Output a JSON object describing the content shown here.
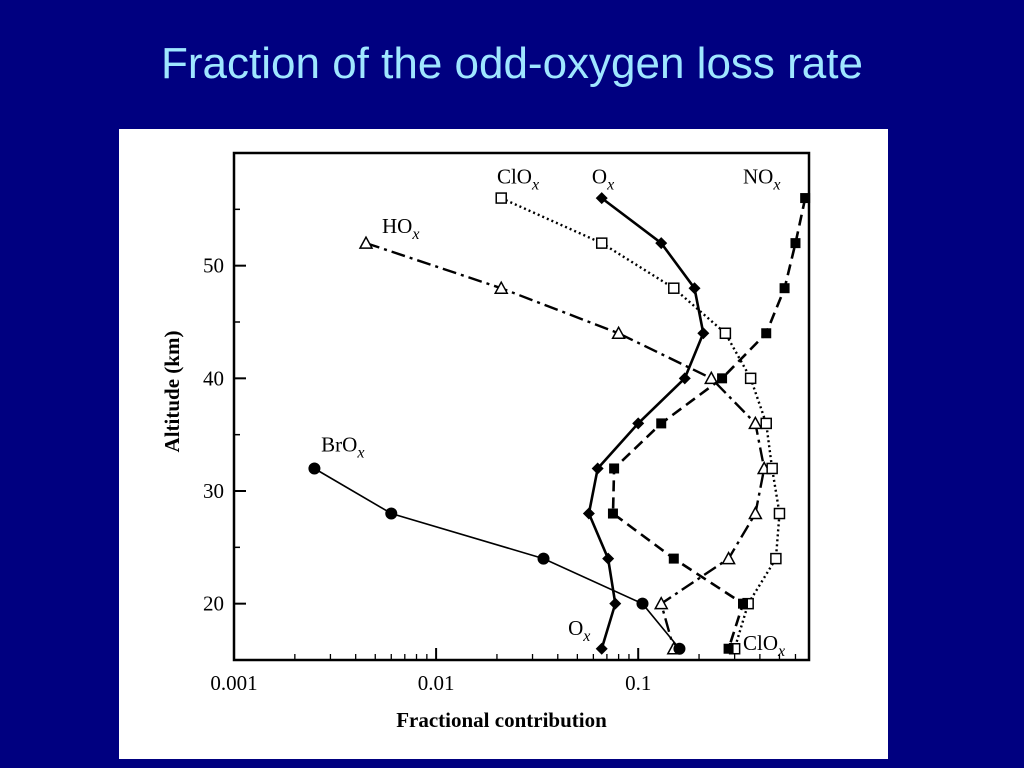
{
  "title": "Fraction of the odd-oxygen loss rate",
  "colors": {
    "background": "#000080",
    "title": "#9fe6ff",
    "panel": "#ffffff",
    "ink": "#000000"
  },
  "chart_data": {
    "type": "line",
    "xscale": "log",
    "xlim": [
      0.001,
      0.7
    ],
    "ylim": [
      15,
      60
    ],
    "xlabel": "Fractional contribution",
    "ylabel": "Altitude (km)",
    "xticks": [
      {
        "value": 0.001,
        "label": "0.001"
      },
      {
        "value": 0.01,
        "label": "0.01"
      },
      {
        "value": 0.1,
        "label": "0.1"
      }
    ],
    "yticks": [
      {
        "value": 20,
        "label": "20"
      },
      {
        "value": 30,
        "label": "30"
      },
      {
        "value": 40,
        "label": "40"
      },
      {
        "value": 50,
        "label": "50"
      }
    ],
    "grid": false,
    "legend": "none",
    "series": [
      {
        "name": "HOx",
        "marker": "triangle-open",
        "line": "dash-dot",
        "points": [
          {
            "x": 0.0045,
            "y": 52
          },
          {
            "x": 0.021,
            "y": 48
          },
          {
            "x": 0.08,
            "y": 44
          },
          {
            "x": 0.23,
            "y": 40
          },
          {
            "x": 0.38,
            "y": 36
          },
          {
            "x": 0.42,
            "y": 32
          },
          {
            "x": 0.38,
            "y": 28
          },
          {
            "x": 0.28,
            "y": 24
          },
          {
            "x": 0.13,
            "y": 20
          },
          {
            "x": 0.15,
            "y": 16
          }
        ]
      },
      {
        "name": "ClOx",
        "marker": "square-open",
        "line": "dotted",
        "points": [
          {
            "x": 0.021,
            "y": 56
          },
          {
            "x": 0.066,
            "y": 52
          },
          {
            "x": 0.15,
            "y": 48
          },
          {
            "x": 0.27,
            "y": 44
          },
          {
            "x": 0.36,
            "y": 40
          },
          {
            "x": 0.43,
            "y": 36
          },
          {
            "x": 0.46,
            "y": 32
          },
          {
            "x": 0.5,
            "y": 28
          },
          {
            "x": 0.48,
            "y": 24
          },
          {
            "x": 0.35,
            "y": 20
          },
          {
            "x": 0.3,
            "y": 16
          }
        ]
      },
      {
        "name": "Ox",
        "marker": "diamond-filled",
        "line": "solid",
        "points": [
          {
            "x": 0.066,
            "y": 56
          },
          {
            "x": 0.13,
            "y": 52
          },
          {
            "x": 0.19,
            "y": 48
          },
          {
            "x": 0.21,
            "y": 44
          },
          {
            "x": 0.17,
            "y": 40
          },
          {
            "x": 0.1,
            "y": 36
          },
          {
            "x": 0.063,
            "y": 32
          },
          {
            "x": 0.057,
            "y": 28
          },
          {
            "x": 0.071,
            "y": 24
          },
          {
            "x": 0.077,
            "y": 20
          },
          {
            "x": 0.066,
            "y": 16
          }
        ]
      },
      {
        "name": "NOx",
        "marker": "square-filled",
        "line": "dashed",
        "points": [
          {
            "x": 0.67,
            "y": 56
          },
          {
            "x": 0.6,
            "y": 52
          },
          {
            "x": 0.53,
            "y": 48
          },
          {
            "x": 0.43,
            "y": 44
          },
          {
            "x": 0.26,
            "y": 40
          },
          {
            "x": 0.13,
            "y": 36
          },
          {
            "x": 0.076,
            "y": 32
          },
          {
            "x": 0.075,
            "y": 28
          },
          {
            "x": 0.15,
            "y": 24
          },
          {
            "x": 0.33,
            "y": 20
          },
          {
            "x": 0.28,
            "y": 16
          }
        ]
      },
      {
        "name": "BrOx",
        "marker": "circle-filled",
        "line": "thin-solid",
        "points": [
          {
            "x": 0.0025,
            "y": 32
          },
          {
            "x": 0.006,
            "y": 28
          },
          {
            "x": 0.034,
            "y": 24
          },
          {
            "x": 0.105,
            "y": 20
          },
          {
            "x": 0.16,
            "y": 16
          }
        ]
      }
    ],
    "annotations": [
      {
        "base": "ClO",
        "sub": "x",
        "anchor_x": 0.02,
        "anchor_y": 57.3,
        "anchor": "start"
      },
      {
        "base": "O",
        "sub": "x",
        "anchor_x": 0.059,
        "anchor_y": 57.3,
        "anchor": "start"
      },
      {
        "base": "NO",
        "sub": "x",
        "anchor_x": 0.33,
        "anchor_y": 57.3,
        "anchor": "start"
      },
      {
        "base": "HO",
        "sub": "x",
        "anchor_x": 0.0054,
        "anchor_y": 52.9,
        "anchor": "start"
      },
      {
        "base": "BrO",
        "sub": "x",
        "anchor_x": 0.0027,
        "anchor_y": 33.5,
        "anchor": "start"
      },
      {
        "base": "O",
        "sub": "x",
        "anchor_x": 0.045,
        "anchor_y": 17.2,
        "anchor": "start"
      },
      {
        "base": "ClO",
        "sub": "x",
        "anchor_x": 0.33,
        "anchor_y": 15.9,
        "anchor": "start"
      }
    ]
  }
}
